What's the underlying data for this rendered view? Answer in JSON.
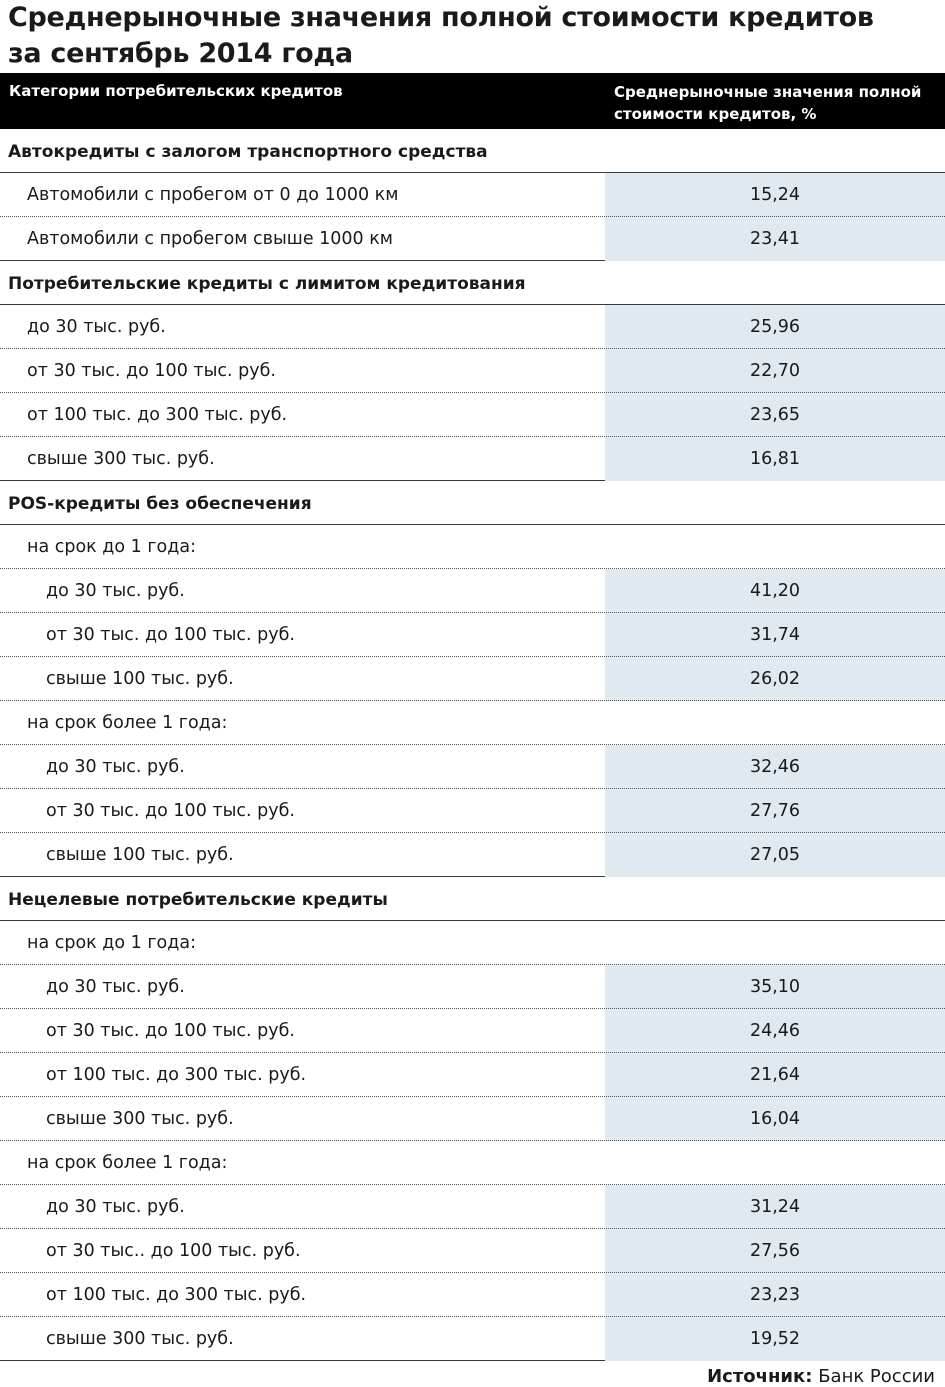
{
  "title_lines": [
    "Среднерыночные значения полной стоимости кредитов",
    "за сентябрь 2014 года"
  ],
  "header": {
    "col_category": "Категории потребительских кредитов",
    "col_value_lines": [
      "Среднерыночные значения полной",
      "стоимости кредитов, %"
    ]
  },
  "chart_data": {
    "type": "table",
    "columns": [
      "Категории потребительских кредитов",
      "Среднерыночные значения полной стоимости кредитов, %"
    ],
    "rows": [
      {
        "kind": "section",
        "label": "Автокредиты с залогом транспортного средства"
      },
      {
        "kind": "item",
        "level": 1,
        "label": "Автомобили с пробегом от 0 до 1000 км",
        "value": "15,24"
      },
      {
        "kind": "item",
        "level": 1,
        "label": "Автомобили с пробегом свыше 1000 км",
        "value": "23,41"
      },
      {
        "kind": "section",
        "label": "Потребительские кредиты с лимитом кредитования"
      },
      {
        "kind": "item",
        "level": 1,
        "label": "до 30 тыс. руб.",
        "value": "25,96"
      },
      {
        "kind": "item",
        "level": 1,
        "label": "от 30 тыс. до 100 тыс. руб.",
        "value": "22,70"
      },
      {
        "kind": "item",
        "level": 1,
        "label": "от 100 тыс. до 300 тыс. руб.",
        "value": "23,65"
      },
      {
        "kind": "item",
        "level": 1,
        "label": "свыше 300 тыс. руб.",
        "value": "16,81"
      },
      {
        "kind": "section",
        "label": "POS-кредиты без обеспечения"
      },
      {
        "kind": "sub",
        "label": "на срок до 1 года:"
      },
      {
        "kind": "item",
        "level": 2,
        "label": "до 30 тыс. руб.",
        "value": "41,20"
      },
      {
        "kind": "item",
        "level": 2,
        "label": "от 30 тыс. до 100 тыс. руб.",
        "value": "31,74"
      },
      {
        "kind": "item",
        "level": 2,
        "label": "свыше 100 тыс. руб.",
        "value": "26,02"
      },
      {
        "kind": "sub",
        "label": "на срок более 1 года:"
      },
      {
        "kind": "item",
        "level": 2,
        "label": "до 30 тыс. руб.",
        "value": "32,46"
      },
      {
        "kind": "item",
        "level": 2,
        "label": "от 30 тыс. до 100 тыс. руб.",
        "value": "27,76"
      },
      {
        "kind": "item",
        "level": 2,
        "label": "свыше 100 тыс. руб.",
        "value": "27,05"
      },
      {
        "kind": "section",
        "label": "Нецелевые потребительские кредиты"
      },
      {
        "kind": "sub",
        "label": "на срок до 1 года:"
      },
      {
        "kind": "item",
        "level": 2,
        "label": "до 30 тыс. руб.",
        "value": "35,10"
      },
      {
        "kind": "item",
        "level": 2,
        "label": "от 30 тыс. до 100 тыс. руб.",
        "value": "24,46"
      },
      {
        "kind": "item",
        "level": 2,
        "label": "от 100 тыс. до 300 тыс. руб.",
        "value": "21,64"
      },
      {
        "kind": "item",
        "level": 2,
        "label": "свыше 300 тыс. руб.",
        "value": "16,04"
      },
      {
        "kind": "sub",
        "label": "на срок более 1 года:"
      },
      {
        "kind": "item",
        "level": 2,
        "label": "до 30 тыс. руб.",
        "value": "31,24"
      },
      {
        "kind": "item",
        "level": 2,
        "label": "от 30 тыс.. до 100 тыс. руб.",
        "value": "27,56"
      },
      {
        "kind": "item",
        "level": 2,
        "label": "от 100 тыс. до 300 тыс. руб.",
        "value": "23,23"
      },
      {
        "kind": "item",
        "level": 2,
        "label": "свыше 300 тыс. руб.",
        "value": "19,52"
      }
    ]
  },
  "source": {
    "label": "Источник:",
    "text": " Банк России"
  },
  "colors": {
    "header_bg": "#000000",
    "value_cell_bg": "#e1e9f0"
  }
}
